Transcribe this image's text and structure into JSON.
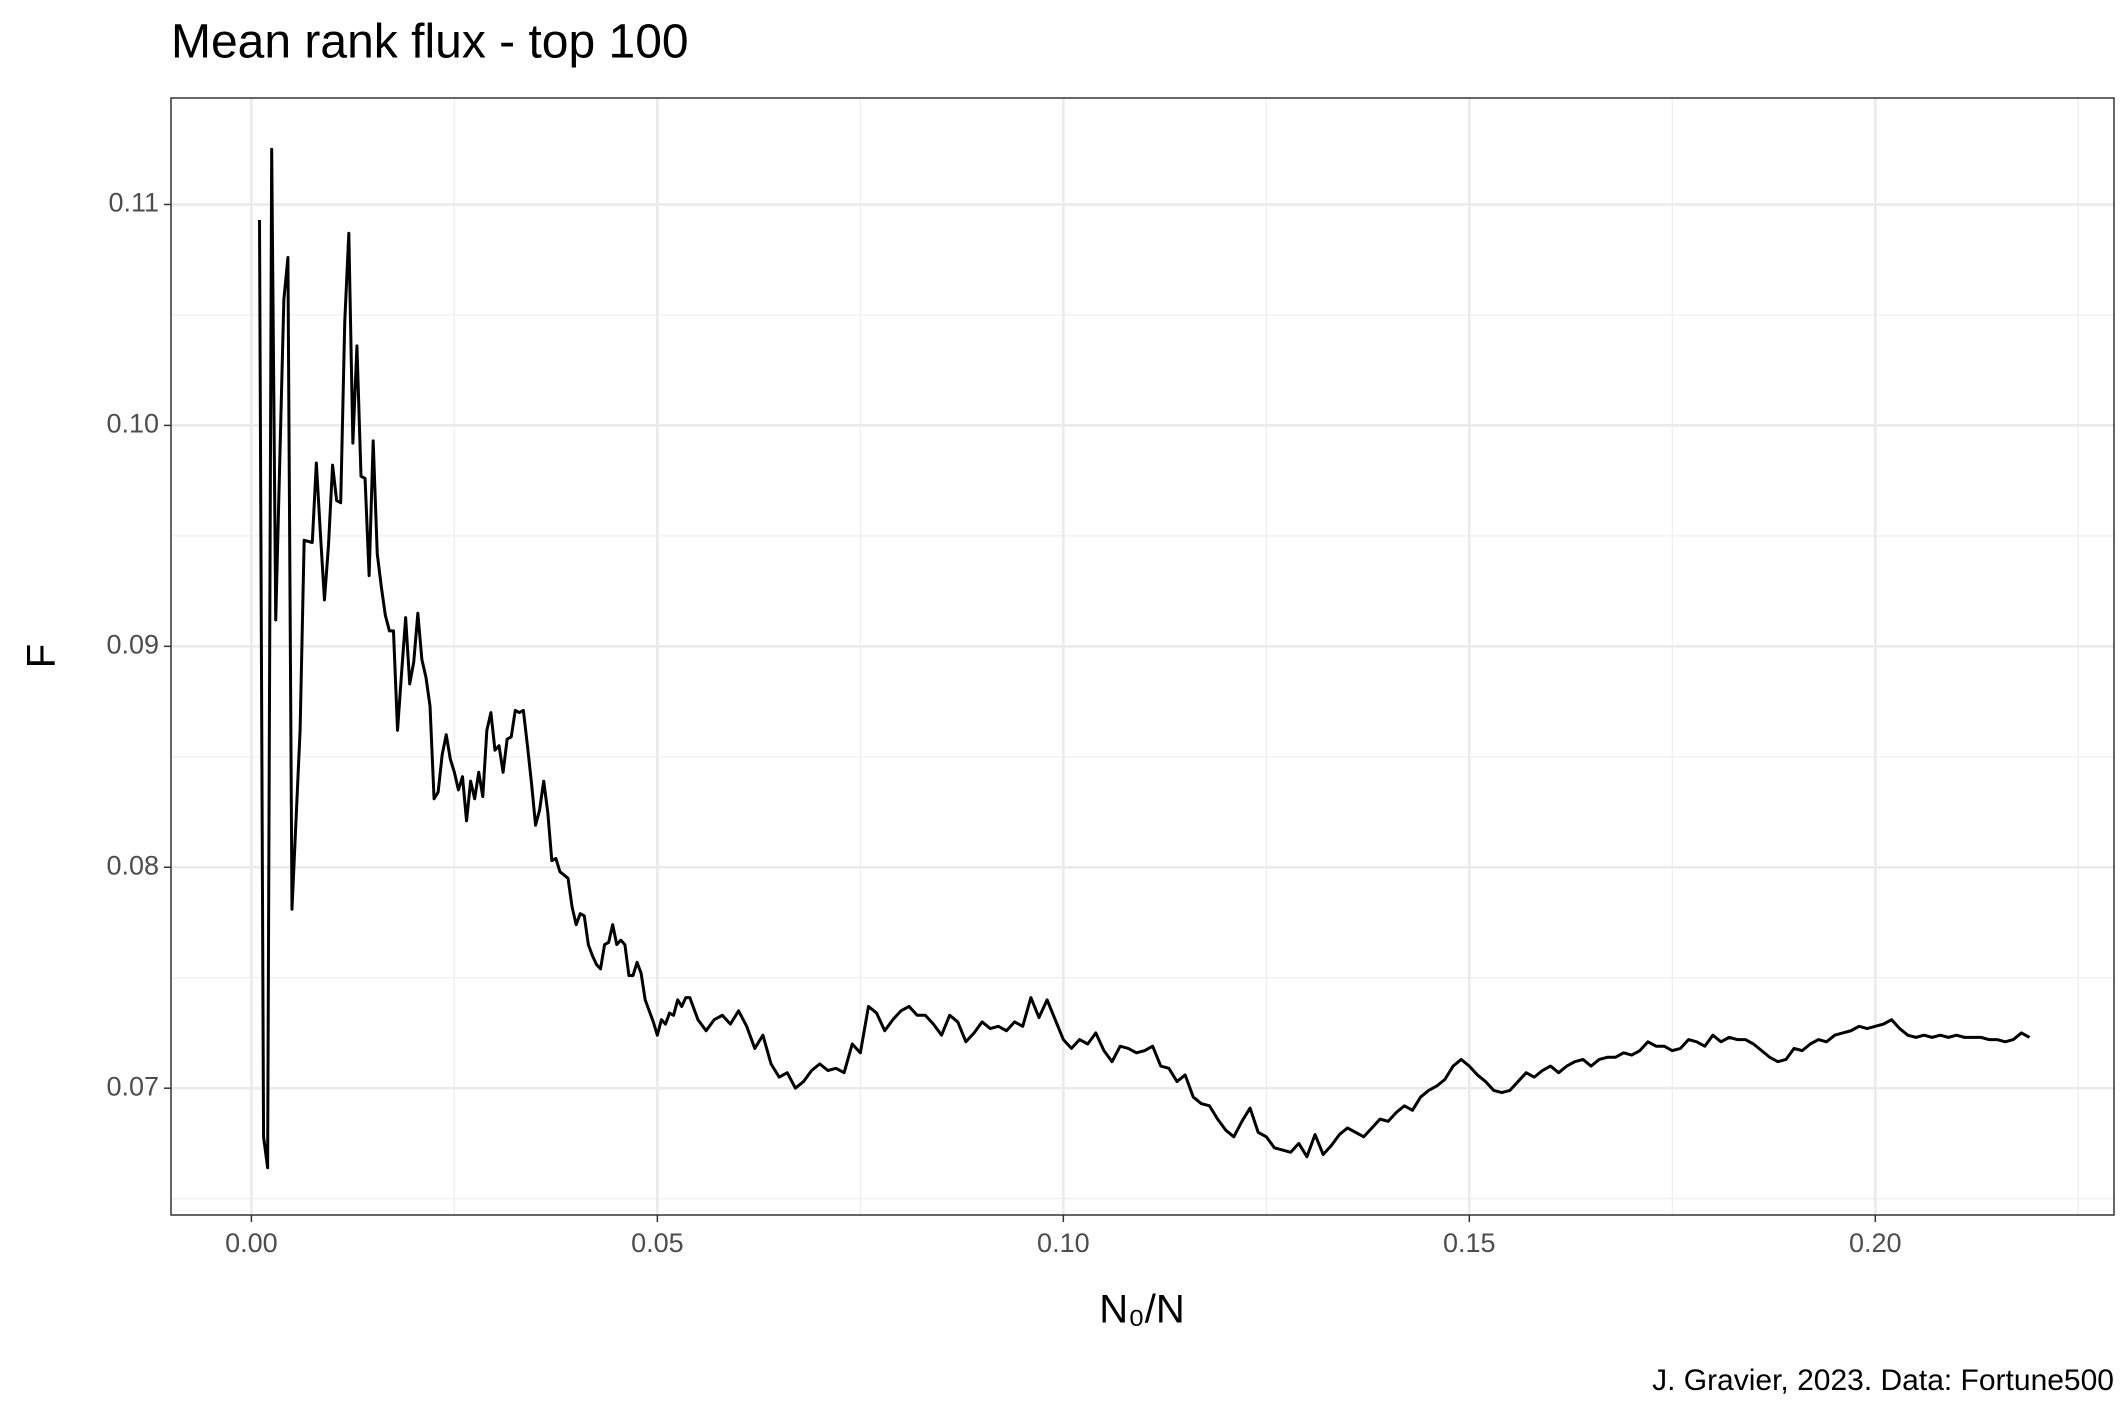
{
  "chart_data": {
    "type": "line",
    "title": "Mean rank flux - top 100",
    "x_label": "N₀/N",
    "y_label": "F",
    "caption": "J. Gravier, 2023. Data: Fortune500",
    "xlim": [
      -0.0099,
      0.2294
    ],
    "ylim": [
      0.06426,
      0.11482
    ],
    "xticks": [
      {
        "value": 0,
        "label": "0.00"
      },
      0.05,
      {
        "value": 0.1,
        "label": "0.10"
      },
      0.15,
      {
        "value": 0.2,
        "label": "0.20"
      }
    ],
    "yticks": [
      0.07,
      0.08,
      0.09,
      {
        "value": 0.1,
        "label": "0.10"
      },
      0.11
    ],
    "xminorticks": [
      0.025,
      0.075,
      0.125,
      0.175,
      0.225
    ],
    "yminorticks": [
      0.065,
      0.075,
      0.085,
      0.095,
      0.105
    ],
    "grid": true,
    "x": [
      0.001,
      0.0015,
      0.002,
      0.0025,
      0.003,
      0.004,
      0.0045,
      0.005,
      0.006,
      0.0065,
      0.0075,
      0.008,
      0.0085,
      0.009,
      0.0095,
      0.01,
      0.0105,
      0.011,
      0.0115,
      0.012,
      0.0125,
      0.013,
      0.0135,
      0.014,
      0.0145,
      0.015,
      0.0155,
      0.016,
      0.0165,
      0.017,
      0.0175,
      0.018,
      0.0185,
      0.019,
      0.0195,
      0.02,
      0.0205,
      0.021,
      0.0215,
      0.022,
      0.0225,
      0.023,
      0.0235,
      0.024,
      0.0245,
      0.025,
      0.0255,
      0.026,
      0.0265,
      0.027,
      0.0275,
      0.028,
      0.0285,
      0.029,
      0.0295,
      0.03,
      0.0305,
      0.031,
      0.0315,
      0.032,
      0.0325,
      0.033,
      0.0335,
      0.034,
      0.0345,
      0.035,
      0.0355,
      0.036,
      0.0365,
      0.037,
      0.0375,
      0.038,
      0.039,
      0.0395,
      0.04,
      0.0405,
      0.041,
      0.0415,
      0.042,
      0.0425,
      0.043,
      0.0435,
      0.044,
      0.0445,
      0.045,
      0.0455,
      0.046,
      0.0465,
      0.047,
      0.0475,
      0.048,
      0.0485,
      0.049,
      0.0495,
      0.05,
      0.0505,
      0.051,
      0.0515,
      0.052,
      0.0525,
      0.053,
      0.0535,
      0.054,
      0.055,
      0.056,
      0.057,
      0.058,
      0.059,
      0.06,
      0.061,
      0.062,
      0.063,
      0.064,
      0.065,
      0.066,
      0.067,
      0.068,
      0.069,
      0.07,
      0.071,
      0.072,
      0.073,
      0.074,
      0.075,
      0.076,
      0.077,
      0.078,
      0.079,
      0.08,
      0.081,
      0.082,
      0.083,
      0.084,
      0.085,
      0.086,
      0.087,
      0.088,
      0.089,
      0.09,
      0.091,
      0.092,
      0.093,
      0.094,
      0.095,
      0.096,
      0.097,
      0.098,
      0.099,
      0.1,
      0.101,
      0.102,
      0.103,
      0.104,
      0.105,
      0.106,
      0.107,
      0.108,
      0.109,
      0.11,
      0.111,
      0.112,
      0.113,
      0.114,
      0.115,
      0.116,
      0.117,
      0.118,
      0.119,
      0.12,
      0.121,
      0.122,
      0.123,
      0.124,
      0.125,
      0.126,
      0.127,
      0.128,
      0.129,
      0.13,
      0.131,
      0.132,
      0.133,
      0.134,
      0.135,
      0.136,
      0.137,
      0.138,
      0.139,
      0.14,
      0.141,
      0.142,
      0.143,
      0.144,
      0.145,
      0.146,
      0.147,
      0.148,
      0.149,
      0.15,
      0.151,
      0.152,
      0.153,
      0.154,
      0.155,
      0.156,
      0.157,
      0.158,
      0.159,
      0.16,
      0.161,
      0.162,
      0.163,
      0.164,
      0.165,
      0.166,
      0.167,
      0.168,
      0.169,
      0.17,
      0.171,
      0.172,
      0.173,
      0.174,
      0.175,
      0.176,
      0.177,
      0.178,
      0.179,
      0.18,
      0.181,
      0.182,
      0.183,
      0.184,
      0.185,
      0.186,
      0.187,
      0.188,
      0.189,
      0.19,
      0.191,
      0.192,
      0.193,
      0.194,
      0.195,
      0.196,
      0.197,
      0.198,
      0.199,
      0.2,
      0.201,
      0.202,
      0.203,
      0.204,
      0.205,
      0.206,
      0.207,
      0.208,
      0.209,
      0.21,
      0.211,
      0.212,
      0.213,
      0.214,
      0.215,
      0.216,
      0.217,
      0.218,
      0.219
    ],
    "series": [
      {
        "color": "#000000",
        "values": [
          0.1093,
          0.0678,
          0.0664,
          0.1125,
          0.0912,
          0.1057,
          0.1076,
          0.0781,
          0.0862,
          0.0948,
          0.0947,
          0.0983,
          0.0951,
          0.0921,
          0.0946,
          0.0982,
          0.0966,
          0.0965,
          0.1047,
          0.1087,
          0.0992,
          0.1036,
          0.0977,
          0.0976,
          0.0932,
          0.0993,
          0.0942,
          0.0927,
          0.0914,
          0.0907,
          0.0907,
          0.0862,
          0.0888,
          0.0913,
          0.0883,
          0.0893,
          0.0915,
          0.0894,
          0.0886,
          0.0873,
          0.0831,
          0.0834,
          0.0851,
          0.086,
          0.0849,
          0.0843,
          0.0835,
          0.0841,
          0.0821,
          0.0839,
          0.0831,
          0.0843,
          0.0832,
          0.0862,
          0.087,
          0.0853,
          0.0855,
          0.0843,
          0.0858,
          0.0859,
          0.0871,
          0.087,
          0.0871,
          0.0855,
          0.0838,
          0.0819,
          0.0826,
          0.0839,
          0.0825,
          0.0803,
          0.0804,
          0.0798,
          0.0795,
          0.0782,
          0.0774,
          0.0779,
          0.0778,
          0.0765,
          0.076,
          0.0756,
          0.0754,
          0.0765,
          0.0766,
          0.0774,
          0.0765,
          0.0767,
          0.0765,
          0.0751,
          0.0751,
          0.0757,
          0.0752,
          0.074,
          0.0735,
          0.073,
          0.0724,
          0.0731,
          0.0729,
          0.0734,
          0.0733,
          0.074,
          0.0737,
          0.0741,
          0.0741,
          0.0731,
          0.0726,
          0.0731,
          0.0733,
          0.0729,
          0.0735,
          0.0728,
          0.0718,
          0.0724,
          0.0711,
          0.0705,
          0.0707,
          0.07,
          0.0703,
          0.0708,
          0.0711,
          0.0708,
          0.0709,
          0.0707,
          0.072,
          0.0716,
          0.0737,
          0.0734,
          0.0726,
          0.0731,
          0.0735,
          0.0737,
          0.0733,
          0.0733,
          0.0729,
          0.0724,
          0.0733,
          0.073,
          0.0721,
          0.0725,
          0.073,
          0.0727,
          0.0728,
          0.0726,
          0.073,
          0.0728,
          0.0741,
          0.0732,
          0.074,
          0.0731,
          0.0722,
          0.0718,
          0.0722,
          0.072,
          0.0725,
          0.0717,
          0.0712,
          0.0719,
          0.0718,
          0.0716,
          0.0717,
          0.0719,
          0.071,
          0.0709,
          0.0703,
          0.0706,
          0.0696,
          0.0693,
          0.0692,
          0.0686,
          0.0681,
          0.0678,
          0.0685,
          0.0691,
          0.068,
          0.0678,
          0.0673,
          0.0672,
          0.0671,
          0.0675,
          0.0669,
          0.0679,
          0.067,
          0.0674,
          0.0679,
          0.0682,
          0.068,
          0.0678,
          0.0682,
          0.0686,
          0.0685,
          0.0689,
          0.0692,
          0.069,
          0.0696,
          0.0699,
          0.0701,
          0.0704,
          0.071,
          0.0713,
          0.071,
          0.0706,
          0.0703,
          0.0699,
          0.0698,
          0.0699,
          0.0703,
          0.0707,
          0.0705,
          0.0708,
          0.071,
          0.0707,
          0.071,
          0.0712,
          0.0713,
          0.071,
          0.0713,
          0.0714,
          0.0714,
          0.0716,
          0.0715,
          0.0717,
          0.0721,
          0.0719,
          0.0719,
          0.0717,
          0.0718,
          0.0722,
          0.0721,
          0.0719,
          0.0724,
          0.0721,
          0.0723,
          0.0722,
          0.0722,
          0.072,
          0.0717,
          0.0714,
          0.0712,
          0.0713,
          0.0718,
          0.0717,
          0.072,
          0.0722,
          0.0721,
          0.0724,
          0.0725,
          0.0726,
          0.0728,
          0.0727,
          0.0728,
          0.0729,
          0.0731,
          0.0727,
          0.0724,
          0.0723,
          0.0724,
          0.0723,
          0.0724,
          0.0723,
          0.0724,
          0.0723,
          0.0723,
          0.0723,
          0.0722,
          0.0722,
          0.0721,
          0.0722,
          0.0725,
          0.0723
        ]
      }
    ]
  }
}
